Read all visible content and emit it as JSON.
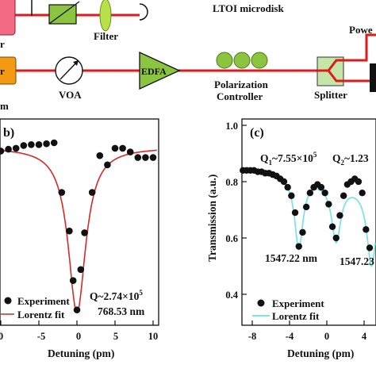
{
  "setup": {
    "labels": {
      "filter": "Filter",
      "microdisk": "LTOI  microdisk",
      "power": "Powe",
      "laser_partial": "r",
      "voa": "VOA",
      "edfa": "EDFA",
      "polarization_line1": "Polarization",
      "polarization_line2": "Controller",
      "splitter": "Splitter",
      "partial_left": "m"
    },
    "colors": {
      "fiber": "#e0191b",
      "laser": "#f39a12",
      "pink": "#f26a83",
      "green": "#8bc53f",
      "lens": "#b9e24a",
      "splitter": "#c6e6a8"
    }
  },
  "panel_b": {
    "tag": "b)",
    "annotation_q": "Q~2.74×10",
    "annotation_q_exp": "5",
    "annotation_wl": "768.53 nm",
    "legend": [
      "Experiment",
      "Lorentz fit"
    ],
    "xlabel": "Detuning  (pm)",
    "xticks": [
      "0",
      "-5",
      "0",
      "5",
      "10"
    ],
    "colors": {
      "fit": "#d42a2a",
      "points": "#000000"
    }
  },
  "panel_c": {
    "tag": "(c)",
    "q1_text": "Q",
    "q1_sub": "1",
    "q1_val": "~7.55×10",
    "q1_exp": "5",
    "q2_text": "Q",
    "q2_sub": "2",
    "q2_val": "~1.23",
    "wl1": "1547.22 nm",
    "wl2": "1547.23",
    "legend": [
      "Experiment",
      "Lorentz fit"
    ],
    "ylabel": "Transmission (a.u.)",
    "xlabel": "Detuning  (pm)",
    "yticks": [
      "1.0",
      "0.8",
      "0.6",
      "0.4"
    ],
    "xticks": [
      "-8",
      "-4",
      "0",
      "4"
    ],
    "colors": {
      "fit": "#7fe3e3",
      "points": "#000000"
    }
  },
  "chart_data": [
    {
      "type": "scatter",
      "panel": "b",
      "xlabel": "Detuning  (pm)",
      "xlim": [
        -10,
        10.5
      ],
      "series": [
        {
          "name": "Experiment",
          "x": [
            -10,
            -9,
            -8,
            -7,
            -6,
            -5,
            -4,
            -3,
            -2,
            -1,
            -0.5,
            0,
            0.5,
            1,
            2,
            3,
            4,
            5,
            6,
            7,
            8,
            9,
            10
          ],
          "y": [
            0.955,
            0.965,
            0.97,
            0.985,
            0.99,
            0.99,
            0.995,
            1.0,
            0.73,
            0.52,
            0.25,
            0.09,
            0.31,
            0.51,
            0.73,
            0.93,
            0.88,
            0.97,
            0.97,
            0.95,
            0.92,
            0.92,
            0.92
          ]
        },
        {
          "name": "Lorentz fit",
          "model": "lorentzian",
          "baseline": 0.975,
          "depth": 0.9,
          "center": 0,
          "fwhm": 2.8
        }
      ],
      "annotations": [
        "Q~2.74×10^5",
        "768.53 nm"
      ]
    },
    {
      "type": "scatter",
      "panel": "c",
      "xlabel": "Detuning  (pm)",
      "ylabel": "Transmission (a.u.)",
      "ylim": [
        0.35,
        1.0
      ],
      "xlim": [
        -9,
        6
      ],
      "series": [
        {
          "name": "Experiment",
          "x": [
            -9,
            -8.6,
            -8.2,
            -7.8,
            -7.4,
            -7,
            -6.6,
            -6.2,
            -5.8,
            -5.4,
            -5,
            -4.6,
            -4.2,
            -3.8,
            -3.4,
            -3,
            -2.6,
            -2.2,
            -1.8,
            -1.4,
            -1,
            -0.6,
            -0.2,
            0.2,
            0.6,
            1,
            1.4,
            1.8,
            2.2,
            2.6,
            3,
            3.4,
            3.8,
            4.2,
            4.6
          ],
          "y": [
            0.84,
            0.84,
            0.84,
            0.84,
            0.835,
            0.835,
            0.83,
            0.83,
            0.825,
            0.82,
            0.81,
            0.8,
            0.78,
            0.75,
            0.69,
            0.57,
            0.62,
            0.71,
            0.76,
            0.78,
            0.79,
            0.78,
            0.76,
            0.72,
            0.64,
            0.6,
            0.68,
            0.75,
            0.79,
            0.8,
            0.81,
            0.8,
            0.76,
            0.63,
            0.565
          ]
        },
        {
          "name": "Lorentz fit",
          "model": "double-lorentzian",
          "centers": [
            -3.0,
            1.0
          ],
          "note": "two dips"
        }
      ],
      "annotations": [
        "Q1~7.55×10^5",
        "Q2~1.23",
        "1547.22 nm",
        "1547.23"
      ]
    }
  ]
}
